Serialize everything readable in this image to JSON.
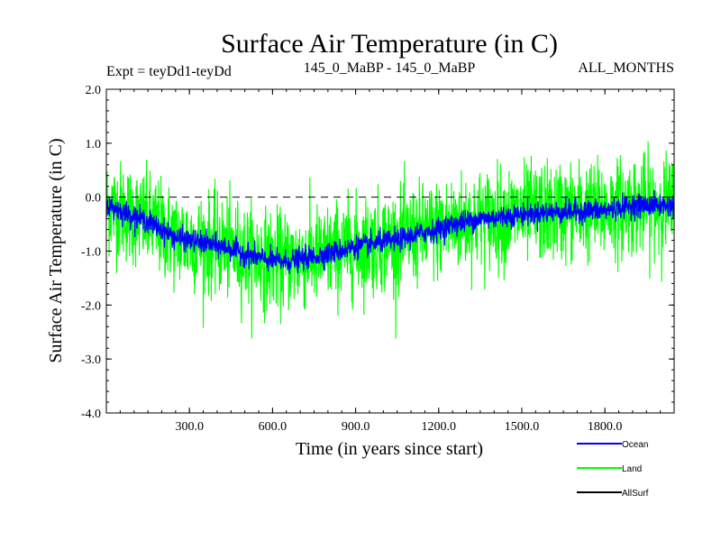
{
  "chart_data": {
    "type": "line",
    "title": "Surface Air Temperature (in C)",
    "subtitle_left": "Expt = teyDd1-teyDd",
    "subtitle_center": "145_0_MaBP - 145_0_MaBP",
    "subtitle_right": "ALL_MONTHS",
    "xlabel": "Time (in years since start)",
    "ylabel": "Surface Air Temperature (in C)",
    "xlim": [
      0,
      2050
    ],
    "ylim": [
      -4.0,
      2.0
    ],
    "x_ticks": [
      300,
      600,
      900,
      1200,
      1500,
      1800
    ],
    "x_tick_labels": [
      "300.0",
      "600.0",
      "900.0",
      "1200.0",
      "1500.0",
      "1800.0"
    ],
    "y_ticks": [
      -4,
      -3,
      -2,
      -1,
      0,
      1,
      2
    ],
    "y_tick_labels": [
      "-4.0",
      "-3.0",
      "-2.0",
      "-1.0",
      "0.0",
      "1.0",
      "2.0"
    ],
    "zero_line": 0.0,
    "series": [
      {
        "name": "Land",
        "color": "#00ff00",
        "trend_x": [
          0,
          50,
          100,
          150,
          200,
          250,
          300,
          350,
          400,
          450,
          500,
          550,
          600,
          650,
          700,
          750,
          800,
          850,
          900,
          950,
          1000,
          1050,
          1100,
          1150,
          1200,
          1250,
          1300,
          1350,
          1400,
          1450,
          1500,
          1550,
          1600,
          1650,
          1700,
          1750,
          1800,
          1850,
          1900,
          1950,
          2000,
          2050
        ],
        "trend_y": [
          -0.15,
          -0.25,
          -0.35,
          -0.45,
          -0.6,
          -0.75,
          -0.8,
          -0.85,
          -0.9,
          -0.95,
          -1.05,
          -1.12,
          -1.18,
          -1.2,
          -1.15,
          -1.1,
          -1.05,
          -0.98,
          -0.92,
          -0.88,
          -0.82,
          -0.8,
          -0.72,
          -0.65,
          -0.6,
          -0.5,
          -0.45,
          -0.4,
          -0.38,
          -0.35,
          -0.32,
          -0.3,
          -0.28,
          -0.27,
          -0.26,
          -0.25,
          -0.25,
          -0.2,
          -0.15,
          -0.15,
          -0.15,
          -0.15
        ],
        "noise_sd": 0.45
      },
      {
        "name": "Ocean",
        "color": "#0000ff",
        "trend_x": [
          0,
          50,
          100,
          150,
          200,
          250,
          300,
          350,
          400,
          450,
          500,
          550,
          600,
          650,
          700,
          750,
          800,
          850,
          900,
          950,
          1000,
          1050,
          1100,
          1150,
          1200,
          1250,
          1300,
          1350,
          1400,
          1450,
          1500,
          1550,
          1600,
          1650,
          1700,
          1750,
          1800,
          1850,
          1900,
          1950,
          2000,
          2050
        ],
        "trend_y": [
          -0.15,
          -0.25,
          -0.35,
          -0.45,
          -0.6,
          -0.75,
          -0.8,
          -0.85,
          -0.9,
          -0.95,
          -1.05,
          -1.12,
          -1.18,
          -1.2,
          -1.15,
          -1.1,
          -1.05,
          -0.98,
          -0.92,
          -0.88,
          -0.82,
          -0.8,
          -0.72,
          -0.65,
          -0.6,
          -0.5,
          -0.45,
          -0.4,
          -0.38,
          -0.35,
          -0.32,
          -0.3,
          -0.28,
          -0.27,
          -0.26,
          -0.25,
          -0.25,
          -0.2,
          -0.15,
          -0.15,
          -0.15,
          -0.15
        ],
        "noise_sd": 0.1
      },
      {
        "name": "AllSurf",
        "color": "#000000",
        "trend_x": [],
        "trend_y": [],
        "noise_sd": 0
      }
    ],
    "legend_order": [
      "Ocean",
      "Land",
      "AllSurf"
    ],
    "legend_position": "bottom-right"
  }
}
